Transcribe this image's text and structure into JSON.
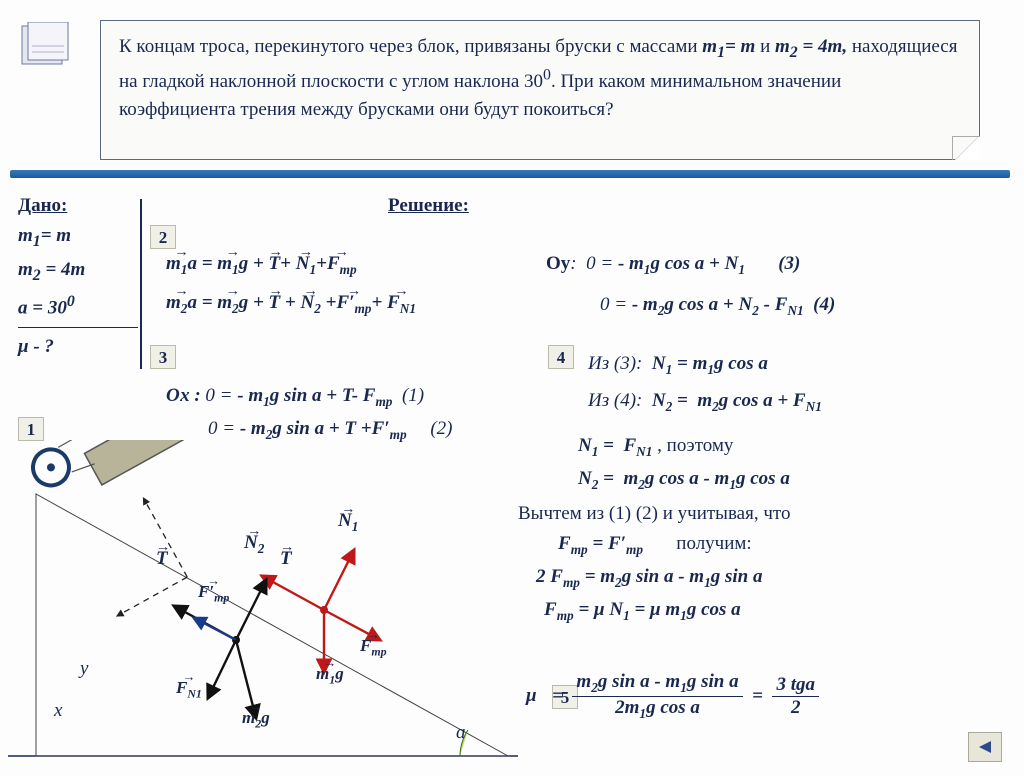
{
  "problem": {
    "text_html": "К концам троса, перекинутого через блок, привязаны бруски с массами <i><b>m<sub>1</sub>= m</b></i> и <i><b>m<sub>2</sub> = 4m,</b></i> находящиеся на гладкой наклонной плоскости с углом наклона 30<sup>0</sup>. При каком минимальном значении коэффициента трения между брусками они будут покоиться?"
  },
  "given": {
    "heading": "Дано:",
    "lines": [
      "m<sub>1</sub>= m",
      "m<sub>2</sub> = 4m",
      "ɑ = 30<sup>0</sup>"
    ],
    "find": "μ - ?"
  },
  "solution_heading": "Решение:",
  "step_badges": [
    "1",
    "2",
    "3",
    "4",
    "5"
  ],
  "eqs": {
    "vec1": "m<sub>1</sub>a = m<sub>1</sub>g + T + N<sub>1</sub> + F<sub>тр</sub>",
    "vec2": "m<sub>2</sub>a = m<sub>2</sub>g + T + N<sub>2</sub> + F′<sub>тр</sub> + F<sub>N1</sub>",
    "ox1": "Ох : 0 = - m<sub>1</sub>g sin ɑ + T - F<sub>тр</sub>   (1)",
    "ox2": "0 = - m<sub>2</sub>g sin ɑ + T + F′<sub>тр</sub>      (2)",
    "oy3": "Оу:  0 = - m<sub>1</sub>g cos ɑ + N<sub>1</sub>        (3)",
    "oy4": "0 = - m<sub>2</sub>g cos ɑ + N<sub>2</sub> - F<sub>N1</sub>  (4)",
    "from3": "Из (3):  N<sub>1</sub> = m<sub>1</sub>g cos ɑ",
    "from4": "Из (4):  N<sub>2</sub> =  m<sub>2</sub>g cos ɑ + F<sub>N1</sub>",
    "n1eq": "N<sub>1</sub> =  F<sub>N1</sub> , поэтому",
    "n2eq": "N<sub>2</sub> =  m<sub>2</sub>g cos ɑ - m<sub>1</sub>g cos ɑ",
    "subtract": "Вычтем из (1) (2) и учитывая, что",
    "ftreq": "F<sub>тр</sub> = F′<sub>тр</sub>        получим:",
    "res1": "2 F<sub>тр</sub> = m<sub>2</sub>g sin ɑ - m<sub>1</sub>g sin ɑ",
    "res2": "F<sub>тр</sub> = μ N<sub>1</sub> = μ m<sub>1</sub>g cos ɑ",
    "mu_num": "m<sub>2</sub>g sin ɑ - m<sub>1</sub>g sin ɑ",
    "mu_den": "2m<sub>1</sub>g cos ɑ",
    "mu_rhs_num": "3 tgɑ",
    "mu_rhs_den": "2"
  },
  "diagram": {
    "incline_color": "#b8b49a",
    "incline_edge": "#555",
    "block_top_fill": "#c2d86a",
    "block_top_edge": "#3a6a1a",
    "pulley_edge": "#1a3a6a",
    "vector_red": "#c01818",
    "vector_dark": "#111",
    "vector_blue": "#1a3a8a",
    "axis_dash": "#222",
    "angle_fill": "#c2d86a",
    "labels": {
      "T": "T",
      "N1": "N₁",
      "N2": "N₂",
      "Ftr": "F<sub>тр</sub>",
      "Ftrp": "F′<sub>тр</sub>",
      "FN1": "F<sub>N1</sub>",
      "m1g": "m<sub>1</sub>g",
      "m2g": "m<sub>2</sub>g",
      "alpha": "ɑ",
      "x": "х",
      "y": "у"
    }
  },
  "colors": {
    "text": "#1a2850",
    "rule": "#2a6aa8",
    "box_border": "#5a6a7a"
  }
}
